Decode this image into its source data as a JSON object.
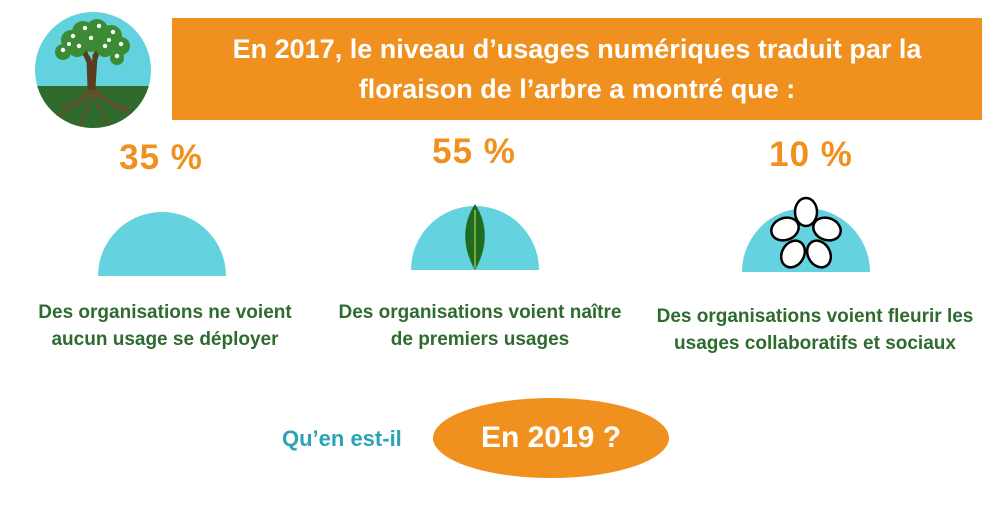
{
  "header": {
    "text": "En 2017, le niveau d’usages numériques traduit par la floraison de l’arbre a montré que :"
  },
  "stats": [
    {
      "percent": "35 %",
      "caption": "Des organisations ne voient aucun usage se déployer",
      "icon": "empty-dome-icon"
    },
    {
      "percent": "55 %",
      "caption": "Des organisations voient naître de premiers usages",
      "icon": "leaf-icon"
    },
    {
      "percent": "10 %",
      "caption": "Des organisations voient fleurir les usages collaboratifs et sociaux",
      "icon": "flower-icon"
    }
  ],
  "footer": {
    "question": "Qu’en est-il",
    "year_button": "En 2019 ?"
  },
  "colors": {
    "accent_orange": "#f0901e",
    "dome_teal": "#65d3df",
    "caption_green": "#2e6b2e",
    "question_teal": "#2aa3b5"
  }
}
